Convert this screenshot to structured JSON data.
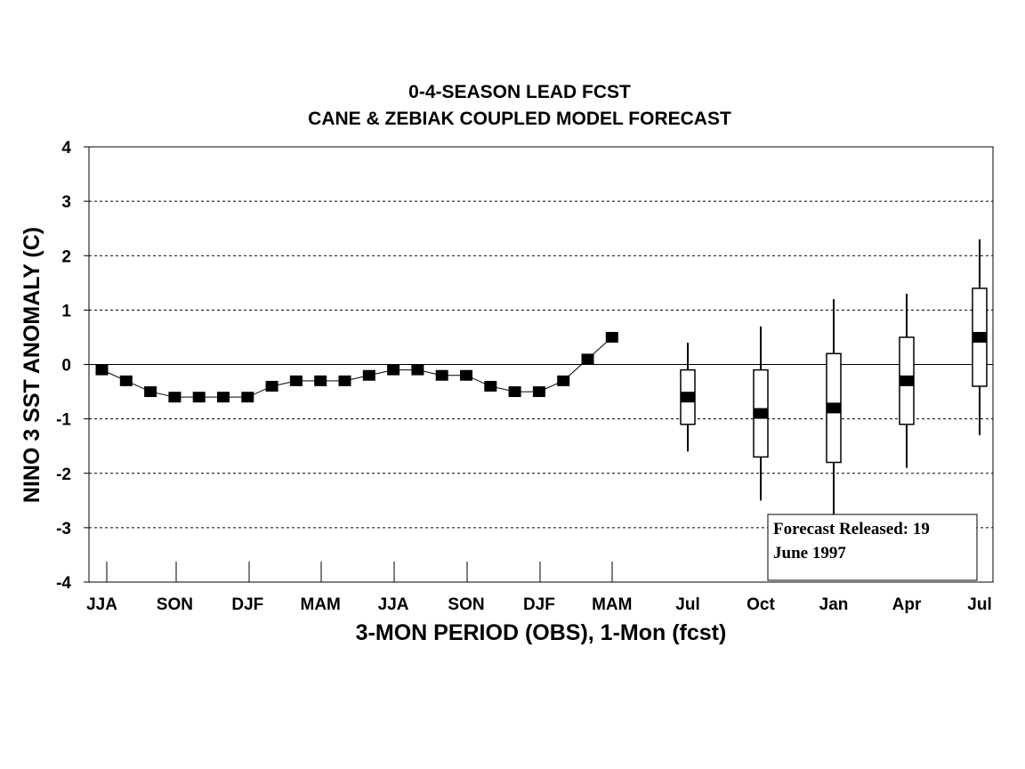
{
  "chart_data": {
    "type": "line",
    "title": "0-4-SEASON LEAD FCST",
    "subtitle": "CANE & ZEBIAK COUPLED MODEL FORECAST",
    "xlabel": "3-MON PERIOD (OBS), 1-Mon (fcst)",
    "ylabel": "NINO 3 SST ANOMALY (C)",
    "ylim": [
      -4,
      4
    ],
    "yticks": [
      "4",
      "3",
      "2",
      "1",
      "0",
      "-1",
      "-2",
      "-3",
      "-4"
    ],
    "grid": "horizontal dotted",
    "xtick_labels": [
      "JJA",
      "SON",
      "DJF",
      "MAM",
      "JJA",
      "SON",
      "DJF",
      "MAM",
      "Jul",
      "Oct",
      "Jan",
      "Apr",
      "Jul"
    ],
    "observed": [
      -0.1,
      -0.3,
      -0.5,
      -0.6,
      -0.6,
      -0.6,
      -0.6,
      -0.4,
      -0.3,
      -0.3,
      -0.3,
      -0.2,
      -0.1,
      -0.1,
      -0.2,
      -0.2,
      -0.4,
      -0.5,
      -0.5,
      -0.3,
      0.1,
      0.5
    ],
    "forecast": [
      {
        "label": "Jul",
        "whisker_low": -1.6,
        "box_low": -1.1,
        "median": -0.6,
        "box_high": -0.1,
        "whisker_high": 0.4
      },
      {
        "label": "Oct",
        "whisker_low": -2.5,
        "box_low": -1.7,
        "median": -0.9,
        "box_high": -0.1,
        "whisker_high": 0.7
      },
      {
        "label": "Jan",
        "whisker_low": -2.9,
        "box_low": -1.8,
        "median": -0.8,
        "box_high": 0.2,
        "whisker_high": 1.2
      },
      {
        "label": "Apr",
        "whisker_low": -1.9,
        "box_low": -1.1,
        "median": -0.3,
        "box_high": 0.5,
        "whisker_high": 1.3
      },
      {
        "label": "Jul",
        "whisker_low": -1.3,
        "box_low": -0.4,
        "median": 0.5,
        "box_high": 1.4,
        "whisker_high": 2.3
      }
    ],
    "annotation": "Forecast Released: 19 June 1997"
  }
}
